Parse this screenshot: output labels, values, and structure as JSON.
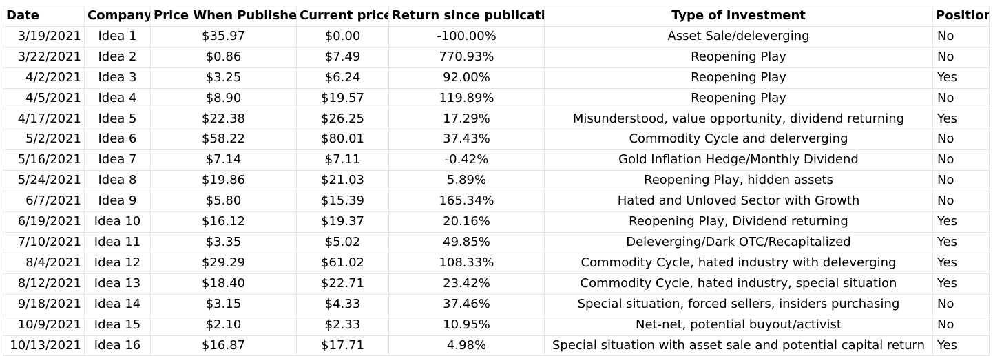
{
  "headers": {
    "date": "Date",
    "company": "Company",
    "price_published": "Price When Published",
    "current_price": "Current price",
    "return": "Return since publication",
    "type": "Type of Investment",
    "position": "Position"
  },
  "rows": [
    {
      "date": "3/19/2021",
      "company": "Idea 1",
      "price_published": "$35.97",
      "current_price": "$0.00",
      "return": "-100.00%",
      "type": "Asset Sale/deleverging",
      "position": "No"
    },
    {
      "date": "3/22/2021",
      "company": "Idea 2",
      "price_published": "$0.86",
      "current_price": "$7.49",
      "return": "770.93%",
      "type": "Reopening Play",
      "position": "No"
    },
    {
      "date": "4/2/2021",
      "company": "Idea 3",
      "price_published": "$3.25",
      "current_price": "$6.24",
      "return": "92.00%",
      "type": "Reopening Play",
      "position": "Yes"
    },
    {
      "date": "4/5/2021",
      "company": "Idea 4",
      "price_published": "$8.90",
      "current_price": "$19.57",
      "return": "119.89%",
      "type": "Reopening Play",
      "position": "No"
    },
    {
      "date": "4/17/2021",
      "company": "Idea 5",
      "price_published": "$22.38",
      "current_price": "$26.25",
      "return": "17.29%",
      "type": "Misunderstood, value opportunity, dividend returning",
      "position": "Yes"
    },
    {
      "date": "5/2/2021",
      "company": "Idea 6",
      "price_published": "$58.22",
      "current_price": "$80.01",
      "return": "37.43%",
      "type": "Commodity Cycle and delerverging",
      "position": "No"
    },
    {
      "date": "5/16/2021",
      "company": "Idea 7",
      "price_published": "$7.14",
      "current_price": "$7.11",
      "return": "-0.42%",
      "type": "Gold Inflation Hedge/Monthly Dividend",
      "position": "No"
    },
    {
      "date": "5/24/2021",
      "company": "Idea 8",
      "price_published": "$19.86",
      "current_price": "$21.03",
      "return": "5.89%",
      "type": "Reopening Play, hidden assets",
      "position": "No"
    },
    {
      "date": "6/7/2021",
      "company": "Idea 9",
      "price_published": "$5.80",
      "current_price": "$15.39",
      "return": "165.34%",
      "type": "Hated and Unloved Sector with Growth",
      "position": "No"
    },
    {
      "date": "6/19/2021",
      "company": "Idea 10",
      "price_published": "$16.12",
      "current_price": "$19.37",
      "return": "20.16%",
      "type": "Reopening Play, Dividend returning",
      "position": "Yes"
    },
    {
      "date": "7/10/2021",
      "company": "Idea 11",
      "price_published": "$3.35",
      "current_price": "$5.02",
      "return": "49.85%",
      "type": "Deleverging/Dark OTC/Recapitalized",
      "position": "Yes"
    },
    {
      "date": "8/4/2021",
      "company": "Idea 12",
      "price_published": "$29.29",
      "current_price": "$61.02",
      "return": "108.33%",
      "type": "Commodity Cycle, hated industry with deleverging",
      "position": "Yes"
    },
    {
      "date": "8/12/2021",
      "company": "Idea 13",
      "price_published": "$18.40",
      "current_price": "$22.71",
      "return": "23.42%",
      "type": "Commodity Cycle, hated industry, special situation",
      "position": "Yes"
    },
    {
      "date": "9/18/2021",
      "company": "Idea 14",
      "price_published": "$3.15",
      "current_price": "$4.33",
      "return": "37.46%",
      "type": "Special situation, forced sellers, insiders purchasing",
      "position": "No"
    },
    {
      "date": "10/9/2021",
      "company": "Idea 15",
      "price_published": "$2.10",
      "current_price": "$2.33",
      "return": "10.95%",
      "type": "Net-net, potential buyout/activist",
      "position": "No"
    },
    {
      "date": "10/13/2021",
      "company": "Idea 16",
      "price_published": "$16.87",
      "current_price": "$17.71",
      "return": "4.98%",
      "type": "Special situation with asset sale and potential capital return",
      "position": "Yes"
    }
  ]
}
